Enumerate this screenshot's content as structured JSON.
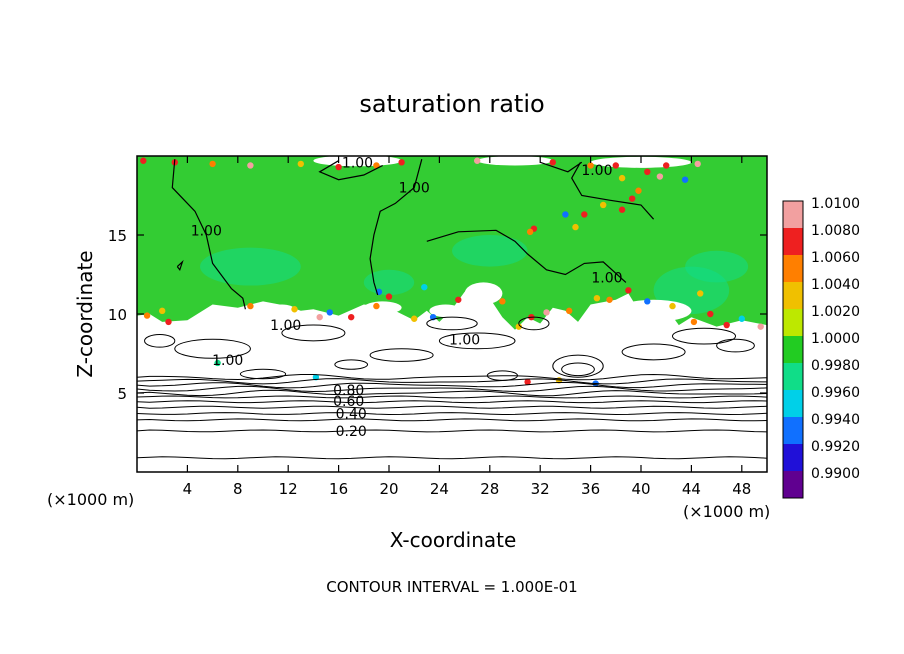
{
  "chart_data": {
    "type": "heatmap",
    "title": "saturation ratio",
    "xlabel": "X-coordinate",
    "ylabel": "Z-coordinate",
    "x_unit_left": "(×1000 m)",
    "x_unit_right": "(×1000 m)",
    "footer": "CONTOUR INTERVAL = 1.000E-01",
    "xlim": [
      0,
      50
    ],
    "ylim": [
      0,
      20
    ],
    "x_ticks": [
      4,
      8,
      12,
      16,
      20,
      24,
      28,
      32,
      36,
      40,
      44,
      48
    ],
    "y_ticks": [
      5,
      10,
      15
    ],
    "colorbar": {
      "levels": [
        "1.0100",
        "1.0080",
        "1.0060",
        "1.0040",
        "1.0020",
        "1.0000",
        "0.9980",
        "0.9960",
        "0.9940",
        "0.9920",
        "0.9900"
      ],
      "colors": [
        "#f2a0a0",
        "#ee2020",
        "#ff7f00",
        "#f0c000",
        "#bde800",
        "#22cc22",
        "#10dd88",
        "#00d0e8",
        "#1070ff",
        "#2010d8",
        "#600090"
      ]
    },
    "field_colors": {
      "background": "#33cc33",
      "subsaturated_region": "#ffffff"
    },
    "contour_labels": [
      {
        "text": "1.00",
        "x": 17.5,
        "z": 19.6
      },
      {
        "text": "1.00",
        "x": 22.0,
        "z": 18.0
      },
      {
        "text": "1.00",
        "x": 5.5,
        "z": 15.3
      },
      {
        "text": "1.00",
        "x": 36.5,
        "z": 19.1
      },
      {
        "text": "1.00",
        "x": 37.3,
        "z": 12.3
      },
      {
        "text": "1.00",
        "x": 11.8,
        "z": 9.3
      },
      {
        "text": "1.00",
        "x": 26.0,
        "z": 8.4
      },
      {
        "text": "1.00",
        "x": 7.2,
        "z": 7.1
      },
      {
        "text": "0.80",
        "x": 16.8,
        "z": 5.2
      },
      {
        "text": "0.60",
        "x": 16.8,
        "z": 4.5
      },
      {
        "text": "0.40",
        "x": 17.0,
        "z": 3.7
      },
      {
        "text": "0.20",
        "x": 17.0,
        "z": 2.6
      }
    ],
    "horizontal_contour_levels_z": [
      0.9,
      2.6,
      3.3,
      3.7,
      4.1,
      4.45,
      4.75,
      5.0,
      5.25,
      5.5,
      5.75,
      6.0
    ]
  }
}
